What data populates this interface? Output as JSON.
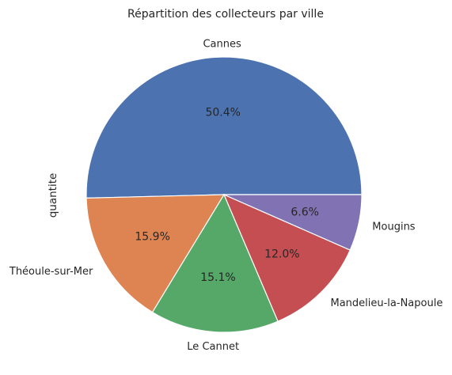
{
  "chart_data": {
    "type": "pie",
    "title": "Répartition des collecteurs par ville",
    "ylabel": "quantite",
    "categories": [
      "Cannes",
      "Théoule-sur-Mer",
      "Le Cannet",
      "Mandelieu-la-Napoule",
      "Mougins"
    ],
    "values": [
      50.4,
      15.9,
      15.1,
      12.0,
      6.6
    ],
    "value_labels": [
      "50.4%",
      "15.9%",
      "15.1%",
      "12.0%",
      "6.6%"
    ],
    "colors": [
      "#4c72b0",
      "#dd8452",
      "#55a868",
      "#c44e52",
      "#8172b3"
    ],
    "start_angle_deg": 0,
    "direction": "counterclockwise"
  }
}
